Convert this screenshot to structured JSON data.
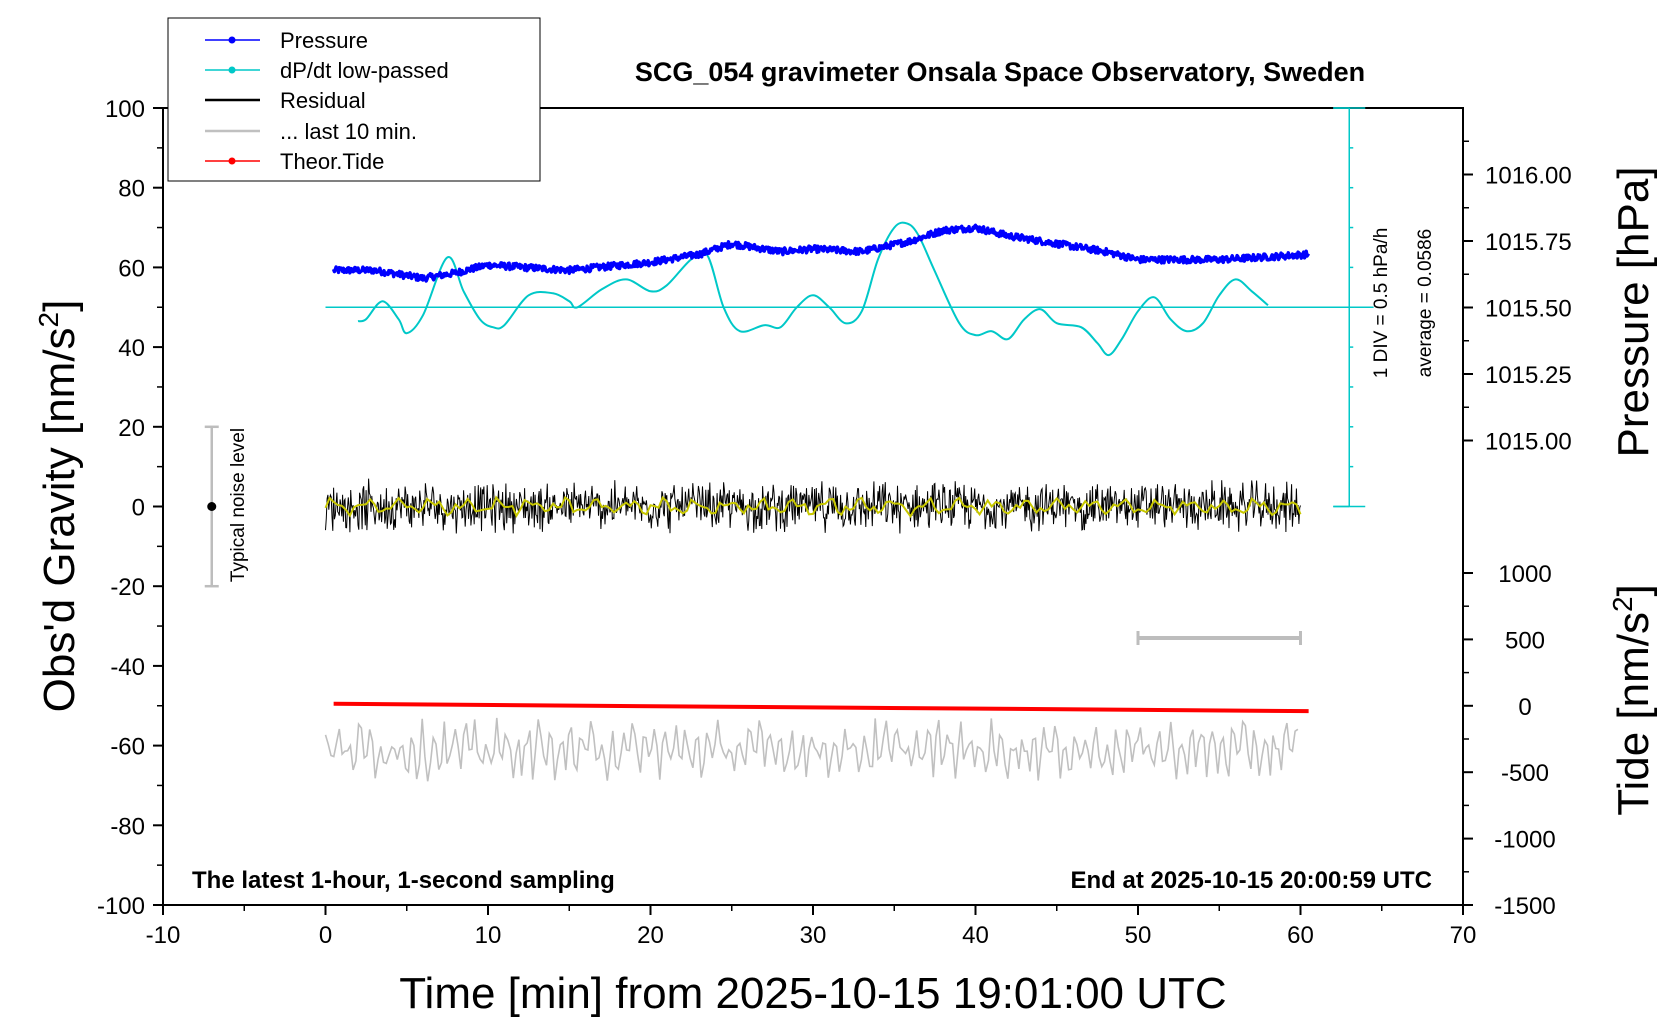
{
  "chart_data": {
    "type": "line",
    "title": "SCG_054 gravimeter Onsala Space Observatory, Sweden",
    "xlabel": "Time [min] from 2025-10-15 19:01:00 UTC",
    "ylabel_left": "Obs'd Gravity [nm/s",
    "ylabel_left_sup": "2",
    "ylabel_left_end": "]",
    "ylabel_right_top": "Pressure [hPa]",
    "ylabel_right_bottom": "Tide [nm/s",
    "ylabel_right_bottom_sup": "2",
    "ylabel_right_bottom_end": "]",
    "xlim": [
      -10,
      70
    ],
    "ylim_left": [
      -100,
      100
    ],
    "ylim_pressure": [
      1014.75,
      1016.25
    ],
    "ylim_tide": [
      -1500,
      1000
    ],
    "x_ticks": [
      "-10",
      "0",
      "10",
      "20",
      "30",
      "40",
      "50",
      "60",
      "70"
    ],
    "y_left_ticks": [
      "-100",
      "-80",
      "-60",
      "-40",
      "-20",
      "0",
      "20",
      "40",
      "60",
      "80",
      "100"
    ],
    "y_pressure_ticks": [
      "1015.00",
      "1015.25",
      "1015.50",
      "1015.75",
      "1016.00"
    ],
    "y_tide_ticks": [
      "-1500",
      "-1000",
      "-500",
      "0",
      "500",
      "1000"
    ],
    "legend_placement": "top-left",
    "legend": [
      {
        "label": "Pressure",
        "color": "#0000ff",
        "marker": true
      },
      {
        "label": "dP/dt low-passed",
        "color": "#00c8c8",
        "marker": true
      },
      {
        "label": "Residual",
        "color": "#000000",
        "marker": false
      },
      {
        "label": "... last 10 min.",
        "color": "#c0c0c0",
        "marker": false
      },
      {
        "label": "Theor.Tide",
        "color": "#ff0000",
        "marker": true
      }
    ],
    "annotations": {
      "bottom_left": "The latest 1-hour, 1-second sampling",
      "bottom_right": "End at 2025-10-15 20:00:59 UTC",
      "noise": "Typical noise level",
      "dpdt_div": "1 DIV = 0.5 hPa/h",
      "dpdt_avg": "average = 0.0586"
    },
    "series": [
      {
        "name": "Pressure",
        "color": "#0000ff",
        "axis": "pressure",
        "x": [
          0.5,
          3,
          6,
          8,
          10,
          15,
          20,
          23,
          25,
          28,
          30,
          33,
          36,
          38,
          40,
          42,
          45,
          48,
          50,
          55,
          58,
          60.5
        ],
        "y": [
          1015.64,
          1015.64,
          1015.61,
          1015.63,
          1015.66,
          1015.64,
          1015.67,
          1015.7,
          1015.74,
          1015.71,
          1015.72,
          1015.71,
          1015.75,
          1015.79,
          1015.8,
          1015.77,
          1015.74,
          1015.71,
          1015.68,
          1015.68,
          1015.69,
          1015.7
        ]
      },
      {
        "name": "dP/dt low-passed",
        "color": "#00c8c8",
        "axis": "left",
        "baseline": 50,
        "x": [
          2,
          2.5,
          3.5,
          4.5,
          5,
          6,
          7.5,
          8.5,
          9.5,
          10.3,
          11,
          12.5,
          14,
          15,
          15.5,
          17,
          18.5,
          20,
          21,
          22.5,
          23.5,
          24.5,
          25.5,
          27,
          28,
          29,
          30,
          31,
          32,
          33,
          34,
          35,
          35.8,
          36.5,
          37.5,
          39,
          40,
          41,
          42,
          43,
          44,
          45,
          46.5,
          47.5,
          48.2,
          49,
          50,
          51,
          52,
          53,
          54,
          55,
          56,
          57,
          58
        ],
        "y": [
          46.5,
          47,
          51.5,
          47,
          43.5,
          48,
          62.5,
          54,
          47,
          45,
          45.5,
          53,
          53.5,
          51.5,
          50,
          54.5,
          57,
          54,
          55.5,
          62,
          63,
          50,
          44,
          45.5,
          45,
          50,
          53,
          50,
          46,
          49,
          62,
          70,
          71,
          68,
          59,
          46,
          43,
          44,
          42,
          47,
          49.5,
          46,
          45,
          41,
          38,
          42,
          49,
          52.5,
          47,
          44,
          46,
          53,
          57,
          54,
          50.5
        ]
      },
      {
        "name": "Residual",
        "color": "#000000",
        "axis": "left",
        "x_range": [
          0,
          60
        ],
        "mean": 0,
        "amplitude": 6
      },
      {
        "name": "... last 10 min.",
        "color": "#c0c0c0",
        "axis": "left",
        "x_range": [
          0,
          60
        ],
        "mean": -61,
        "amplitude": 6
      },
      {
        "name": "Theor.Tide",
        "color": "#ff0000",
        "axis": "tide",
        "x": [
          0.5,
          60.5
        ],
        "y": [
          15,
          -40
        ]
      }
    ],
    "noise_bar": {
      "x": -7,
      "y_range": [
        -20,
        20
      ],
      "center": 0
    },
    "window_bar_x": [
      50,
      60
    ]
  }
}
